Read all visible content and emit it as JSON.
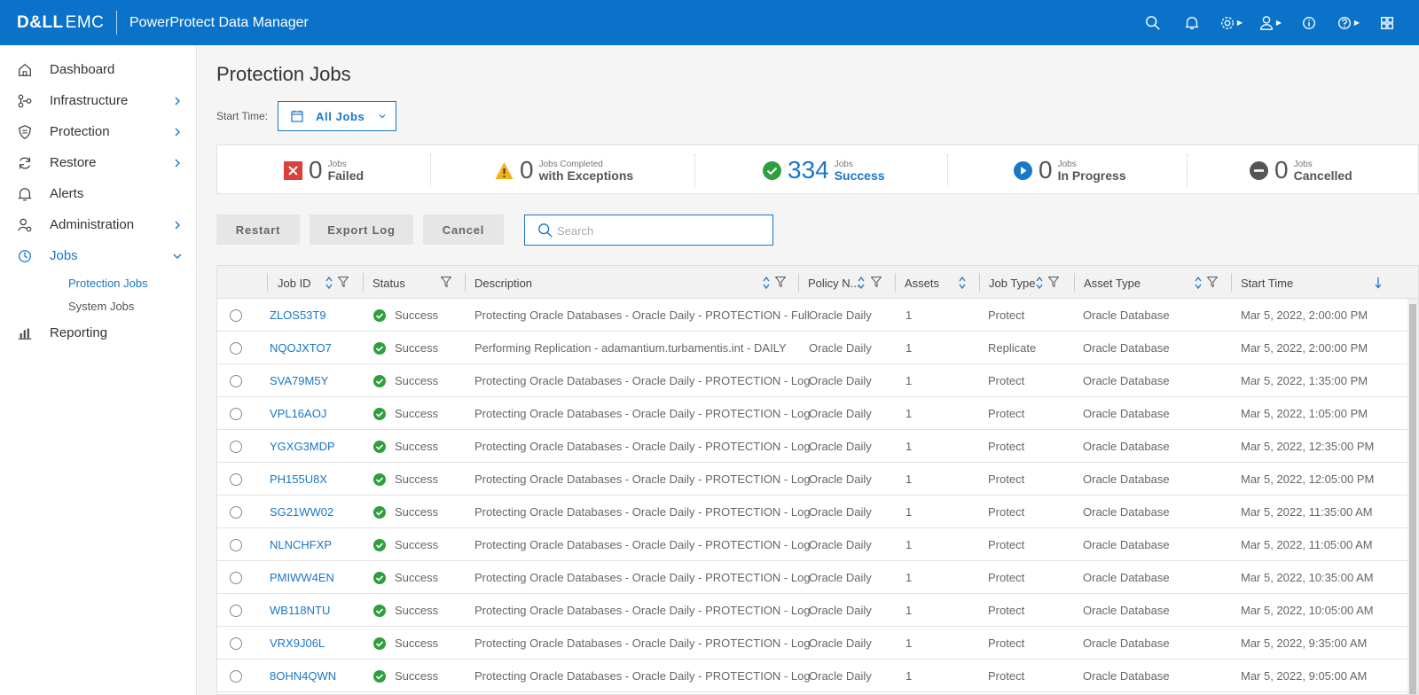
{
  "header": {
    "brand_strong": "D&LL",
    "brand_light": "EMC",
    "product": "PowerProtect Data Manager",
    "icons": [
      "search-icon",
      "bell-icon",
      "gear-icon",
      "user-icon",
      "info-icon",
      "help-icon",
      "apps-grid-icon"
    ]
  },
  "sidebar": {
    "items": [
      {
        "label": "Dashboard",
        "icon": "home-icon"
      },
      {
        "label": "Infrastructure",
        "icon": "infrastructure-icon"
      },
      {
        "label": "Protection",
        "icon": "shield-icon"
      },
      {
        "label": "Restore",
        "icon": "restore-icon"
      },
      {
        "label": "Alerts",
        "icon": "bell-icon"
      },
      {
        "label": "Administration",
        "icon": "admin-icon"
      },
      {
        "label": "Jobs",
        "icon": "clock-icon"
      },
      {
        "label": "Reporting",
        "icon": "bar-chart-icon"
      }
    ],
    "jobs_sub": [
      {
        "label": "Protection Jobs"
      },
      {
        "label": "System Jobs"
      }
    ]
  },
  "main": {
    "title": "Protection Jobs",
    "start_time_label": "Start Time:",
    "start_time_value": "All Jobs",
    "summary": [
      {
        "count": "0",
        "small": "Jobs",
        "big": "Failed"
      },
      {
        "count": "0",
        "small": "Jobs Completed",
        "big": "with Exceptions"
      },
      {
        "count": "334",
        "small": "Jobs",
        "big": "Success"
      },
      {
        "count": "0",
        "small": "Jobs",
        "big": "In Progress"
      },
      {
        "count": "0",
        "small": "Jobs",
        "big": "Cancelled"
      }
    ],
    "buttons": {
      "restart": "Restart",
      "export_log": "Export Log",
      "cancel": "Cancel"
    },
    "search_placeholder": "Search"
  },
  "table": {
    "columns": [
      "Job ID",
      "Status",
      "Description",
      "Policy N...",
      "Assets",
      "Job Type",
      "Asset Type",
      "Start Time"
    ],
    "rows": [
      {
        "id": "ZLOS53T9",
        "status": "Success",
        "description": "Protecting Oracle Databases - Oracle Daily - PROTECTION - Full",
        "policy": "Oracle Daily",
        "assets": "1",
        "job_type": "Protect",
        "asset_type": "Oracle Database",
        "start_time": "Mar 5, 2022, 2:00:00 PM"
      },
      {
        "id": "NQOJXTO7",
        "status": "Success",
        "description": "Performing Replication - adamantium.turbamentis.int - DAILY",
        "policy": "Oracle Daily",
        "assets": "1",
        "job_type": "Replicate",
        "asset_type": "Oracle Database",
        "start_time": "Mar 5, 2022, 2:00:00 PM"
      },
      {
        "id": "SVA79M5Y",
        "status": "Success",
        "description": "Protecting Oracle Databases - Oracle Daily - PROTECTION - Log",
        "policy": "Oracle Daily",
        "assets": "1",
        "job_type": "Protect",
        "asset_type": "Oracle Database",
        "start_time": "Mar 5, 2022, 1:35:00 PM"
      },
      {
        "id": "VPL16AOJ",
        "status": "Success",
        "description": "Protecting Oracle Databases - Oracle Daily - PROTECTION - Log",
        "policy": "Oracle Daily",
        "assets": "1",
        "job_type": "Protect",
        "asset_type": "Oracle Database",
        "start_time": "Mar 5, 2022, 1:05:00 PM"
      },
      {
        "id": "YGXG3MDP",
        "status": "Success",
        "description": "Protecting Oracle Databases - Oracle Daily - PROTECTION - Log",
        "policy": "Oracle Daily",
        "assets": "1",
        "job_type": "Protect",
        "asset_type": "Oracle Database",
        "start_time": "Mar 5, 2022, 12:35:00 PM"
      },
      {
        "id": "PH155U8X",
        "status": "Success",
        "description": "Protecting Oracle Databases - Oracle Daily - PROTECTION - Log",
        "policy": "Oracle Daily",
        "assets": "1",
        "job_type": "Protect",
        "asset_type": "Oracle Database",
        "start_time": "Mar 5, 2022, 12:05:00 PM"
      },
      {
        "id": "SG21WW02",
        "status": "Success",
        "description": "Protecting Oracle Databases - Oracle Daily - PROTECTION - Log",
        "policy": "Oracle Daily",
        "assets": "1",
        "job_type": "Protect",
        "asset_type": "Oracle Database",
        "start_time": "Mar 5, 2022, 11:35:00 AM"
      },
      {
        "id": "NLNCHFXP",
        "status": "Success",
        "description": "Protecting Oracle Databases - Oracle Daily - PROTECTION - Log",
        "policy": "Oracle Daily",
        "assets": "1",
        "job_type": "Protect",
        "asset_type": "Oracle Database",
        "start_time": "Mar 5, 2022, 11:05:00 AM"
      },
      {
        "id": "PMIWW4EN",
        "status": "Success",
        "description": "Protecting Oracle Databases - Oracle Daily - PROTECTION - Log",
        "policy": "Oracle Daily",
        "assets": "1",
        "job_type": "Protect",
        "asset_type": "Oracle Database",
        "start_time": "Mar 5, 2022, 10:35:00 AM"
      },
      {
        "id": "WB118NTU",
        "status": "Success",
        "description": "Protecting Oracle Databases - Oracle Daily - PROTECTION - Log",
        "policy": "Oracle Daily",
        "assets": "1",
        "job_type": "Protect",
        "asset_type": "Oracle Database",
        "start_time": "Mar 5, 2022, 10:05:00 AM"
      },
      {
        "id": "VRX9J06L",
        "status": "Success",
        "description": "Protecting Oracle Databases - Oracle Daily - PROTECTION - Log",
        "policy": "Oracle Daily",
        "assets": "1",
        "job_type": "Protect",
        "asset_type": "Oracle Database",
        "start_time": "Mar 5, 2022, 9:35:00 AM"
      },
      {
        "id": "8OHN4QWN",
        "status": "Success",
        "description": "Protecting Oracle Databases - Oracle Daily - PROTECTION - Log",
        "policy": "Oracle Daily",
        "assets": "1",
        "job_type": "Protect",
        "asset_type": "Oracle Database",
        "start_time": "Mar 5, 2022, 9:05:00 AM"
      }
    ]
  },
  "colors": {
    "primary": "#0a73c9",
    "link": "#1a76c7",
    "success": "#2e9e3f",
    "failed": "#d9413a",
    "warning": "#f2b318",
    "cancelled": "#555555"
  }
}
